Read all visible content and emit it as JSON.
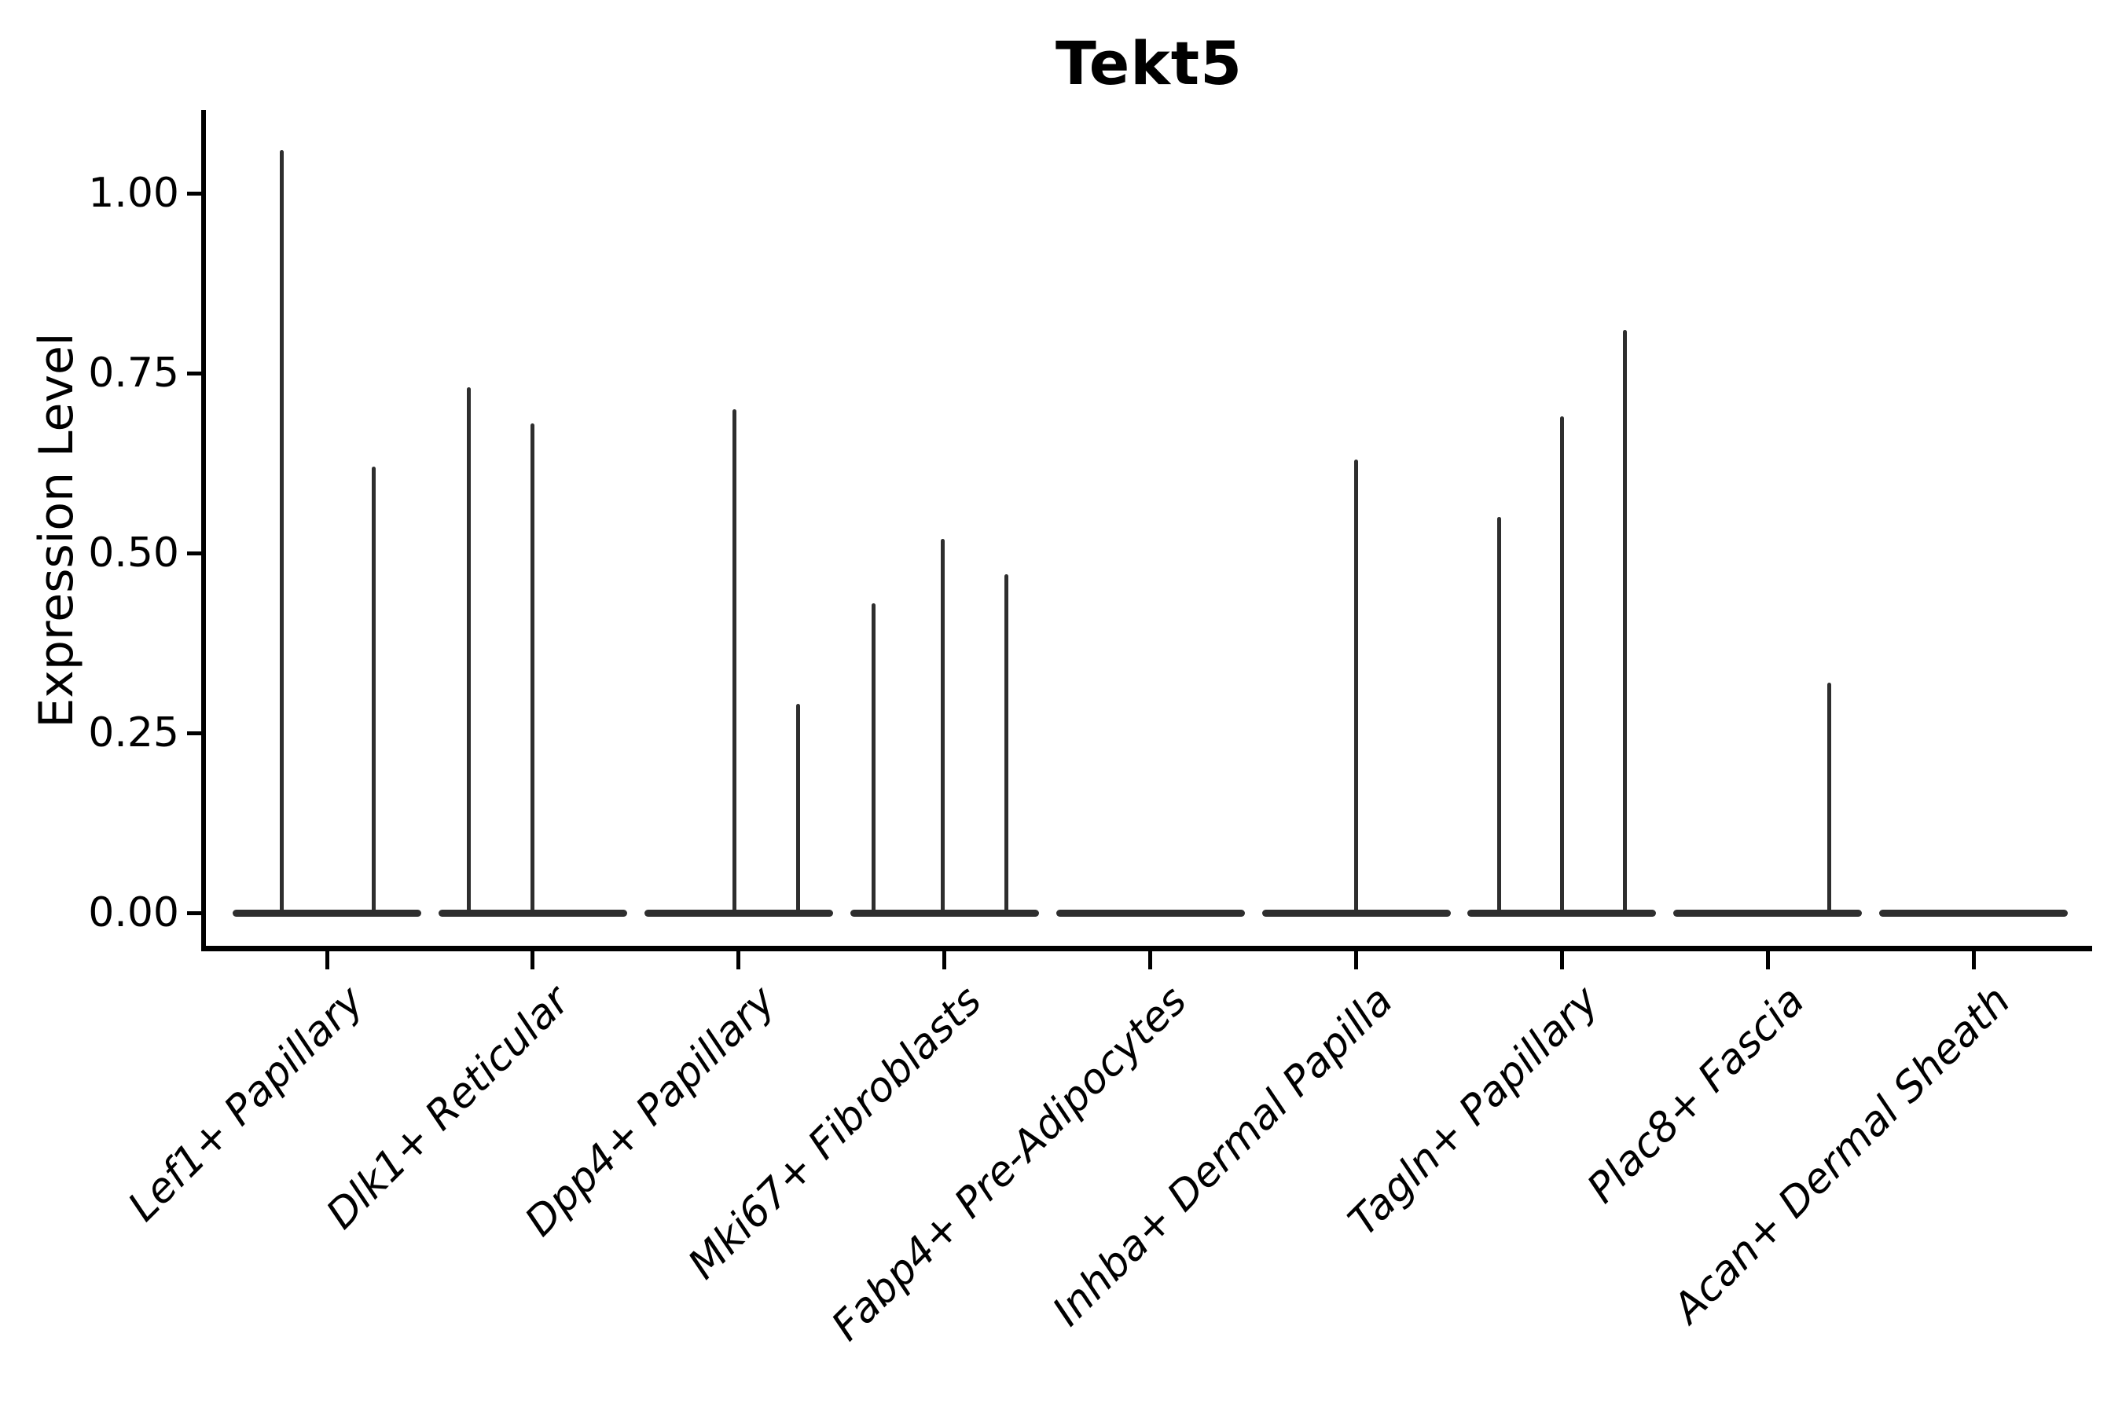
{
  "chart_data": {
    "type": "violin",
    "title": "Tekt5",
    "ylabel": "Expression Level",
    "xlabel": "",
    "grid": "off",
    "legend": "none",
    "ylim": [
      -0.05,
      1.11
    ],
    "yticks": [
      {
        "value": 0.0,
        "label": "0.00"
      },
      {
        "value": 0.25,
        "label": "0.25"
      },
      {
        "value": 0.5,
        "label": "0.50"
      },
      {
        "value": 0.75,
        "label": "0.75"
      },
      {
        "value": 1.0,
        "label": "1.00"
      }
    ],
    "categories": [
      {
        "label": "Lef1+ Papillary",
        "spikes": [
          {
            "x_offset": -58,
            "value": 1.06
          },
          {
            "x_offset": 59,
            "value": 0.62
          }
        ]
      },
      {
        "label": "Dlk1+ Reticular",
        "spikes": [
          {
            "x_offset": -81,
            "value": 0.73
          },
          {
            "x_offset": 0,
            "value": 0.68
          }
        ]
      },
      {
        "label": "Dpp4+ Papillary",
        "spikes": [
          {
            "x_offset": -5,
            "value": 0.7
          },
          {
            "x_offset": 76,
            "value": 0.29
          }
        ]
      },
      {
        "label": "Mki67+ Fibroblasts",
        "spikes": [
          {
            "x_offset": -90,
            "value": 0.43
          },
          {
            "x_offset": -2,
            "value": 0.52
          },
          {
            "x_offset": 79,
            "value": 0.47
          }
        ]
      },
      {
        "label": "Fabp4+ Pre-Adipocytes",
        "spikes": []
      },
      {
        "label": "Inhba+ Dermal Papilla",
        "spikes": [
          {
            "x_offset": 0,
            "value": 0.63
          }
        ]
      },
      {
        "label": "Tagln+ Papillary",
        "spikes": [
          {
            "x_offset": -80,
            "value": 0.55
          },
          {
            "x_offset": 0,
            "value": 0.69
          },
          {
            "x_offset": 80,
            "value": 0.81
          }
        ]
      },
      {
        "label": "Plac8+ Fascia",
        "spikes": [
          {
            "x_offset": 78,
            "value": 0.32
          }
        ]
      },
      {
        "label": "Acan+ Dermal Sheath",
        "spikes": []
      }
    ],
    "colors": {
      "violin": "#2e2e2e",
      "axis": "#000000",
      "text": "#000000",
      "background": "#ffffff"
    }
  }
}
